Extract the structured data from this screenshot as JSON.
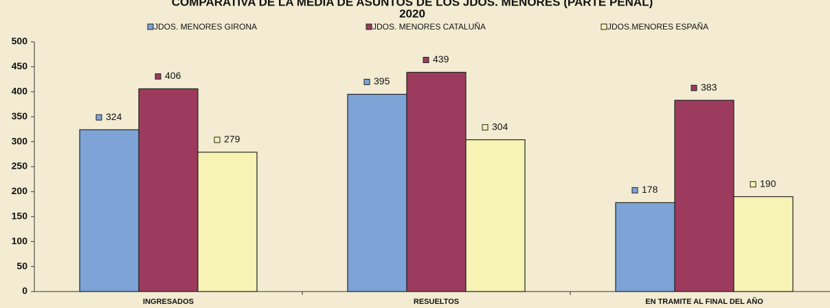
{
  "chart_data": {
    "type": "bar",
    "title": "COMPARATIVA DE LA MEDIA DE ASUNTOS DE LOS JDOS. MENORES (PARTE PENAL)",
    "subtitle": "2020",
    "categories": [
      "INGRESADOS",
      "RESUELTOS",
      "EN TRAMITE AL FINAL DEL AÑO"
    ],
    "series": [
      {
        "name": "JDOS. MENORES GIRONA",
        "color": "#7ea3d6",
        "values": [
          324,
          395,
          178
        ]
      },
      {
        "name": "JDOS. MENORES  CATALUÑA",
        "color": "#9c3b5d",
        "values": [
          406,
          439,
          383
        ]
      },
      {
        "name": "JDOS.MENORES  ESPAÑA",
        "color": "#f7f3b4",
        "values": [
          279,
          304,
          190
        ]
      }
    ],
    "ylim": [
      0,
      500
    ],
    "yticks": [
      0,
      50,
      100,
      150,
      200,
      250,
      300,
      350,
      400,
      450,
      500
    ],
    "legend": "top"
  }
}
